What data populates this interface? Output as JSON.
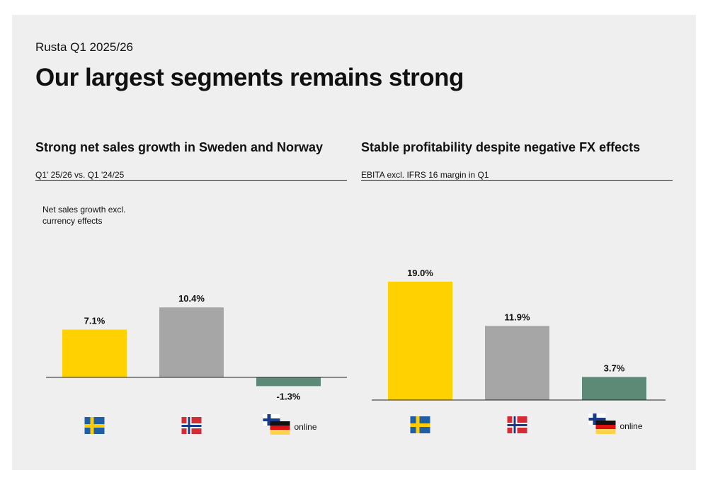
{
  "header": {
    "company": "Rusta Q1 2025/26",
    "title": "Our largest segments remains strong"
  },
  "left": {
    "title": "Strong net sales growth in Sweden and Norway",
    "subtitle": "Q1' 25/26 vs. Q1 '24/25",
    "ylabel_line1": "Net sales growth excl.",
    "ylabel_line2": "currency effects"
  },
  "right": {
    "title": "Stable profitability despite negative FX effects",
    "subtitle": "EBITA excl. IFRS 16 margin in Q1"
  },
  "online_label": "online",
  "colors": {
    "sweden": "#ffd100",
    "norway": "#a6a6a6",
    "other": "#5c8a77"
  },
  "chart_data": [
    {
      "type": "bar",
      "title": "Strong net sales growth in Sweden and Norway",
      "categories": [
        "sweden-flag-icon",
        "norway-flag-icon",
        "online"
      ],
      "values": [
        7.1,
        10.4,
        -1.3
      ],
      "labels": [
        "7.1%",
        "10.4%",
        "-1.3%"
      ],
      "ylabel": "Net sales growth excl. currency effects",
      "colors": [
        "#ffd100",
        "#a6a6a6",
        "#5c8a77"
      ]
    },
    {
      "type": "bar",
      "title": "Stable profitability despite negative FX effects",
      "categories": [
        "sweden-flag-icon",
        "norway-flag-icon",
        "online"
      ],
      "values": [
        19.0,
        11.9,
        3.7
      ],
      "labels": [
        "19.0%",
        "11.9%",
        "3.7%"
      ],
      "ylabel": "EBITA excl. IFRS 16 margin in Q1",
      "colors": [
        "#ffd100",
        "#a6a6a6",
        "#5c8a77"
      ]
    }
  ]
}
